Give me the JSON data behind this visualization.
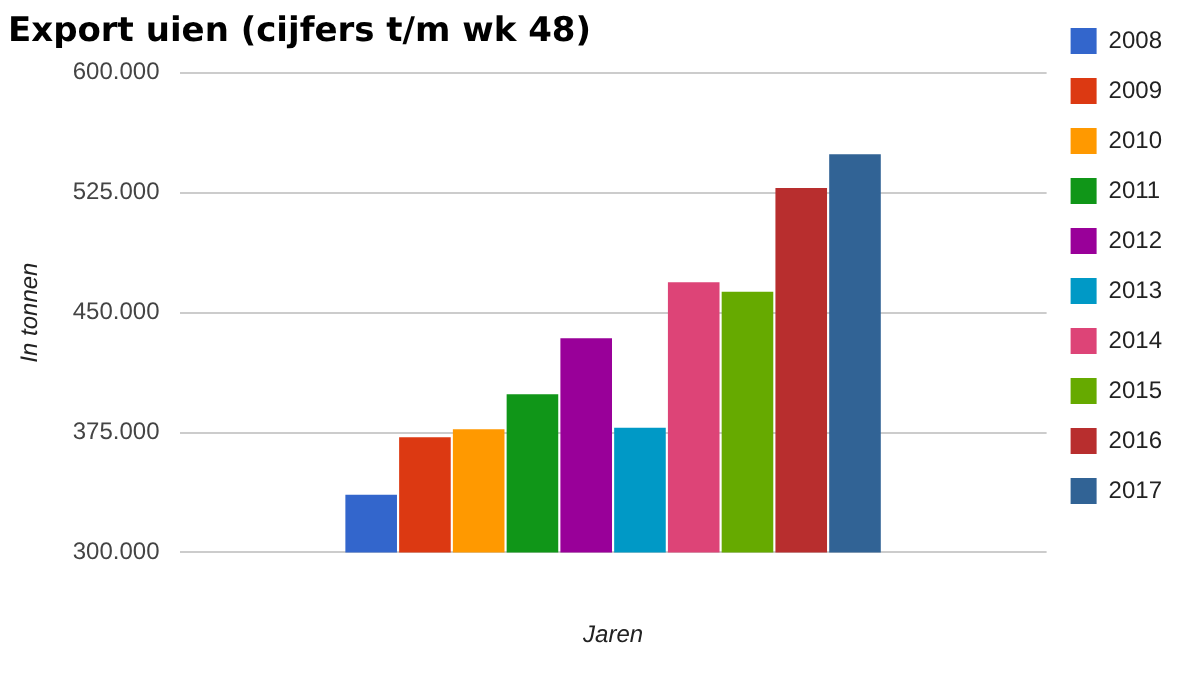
{
  "chart_data": {
    "type": "bar",
    "title": "Export uien (cijfers t/m wk 48)",
    "xlabel": "Jaren",
    "ylabel": "In tonnen",
    "categories": [
      null
    ],
    "series": [
      {
        "name": "2008",
        "color": "#3366cc",
        "values": [
          336000
        ]
      },
      {
        "name": "2009",
        "color": "#dc3912",
        "values": [
          372000
        ]
      },
      {
        "name": "2010",
        "color": "#ff9900",
        "values": [
          377000
        ]
      },
      {
        "name": "2011",
        "color": "#109618",
        "values": [
          399000
        ]
      },
      {
        "name": "2012",
        "color": "#990099",
        "values": [
          434000
        ]
      },
      {
        "name": "2013",
        "color": "#0099c6",
        "values": [
          378000
        ]
      },
      {
        "name": "2014",
        "color": "#dd4477",
        "values": [
          469000
        ]
      },
      {
        "name": "2015",
        "color": "#66aa00",
        "values": [
          463000
        ]
      },
      {
        "name": "2016",
        "color": "#b82e2e",
        "values": [
          528000
        ]
      },
      {
        "name": "2017",
        "color": "#316395",
        "values": [
          549000
        ]
      }
    ],
    "ylim": [
      300000,
      600000
    ],
    "yticks": [
      {
        "value": 300000,
        "label": "300.000"
      },
      {
        "value": 375000,
        "label": "375.000"
      },
      {
        "value": 450000,
        "label": "450.000"
      },
      {
        "value": 525000,
        "label": "525.000"
      },
      {
        "value": 600000,
        "label": "600.000"
      }
    ],
    "grid": "y",
    "legend": "right"
  }
}
